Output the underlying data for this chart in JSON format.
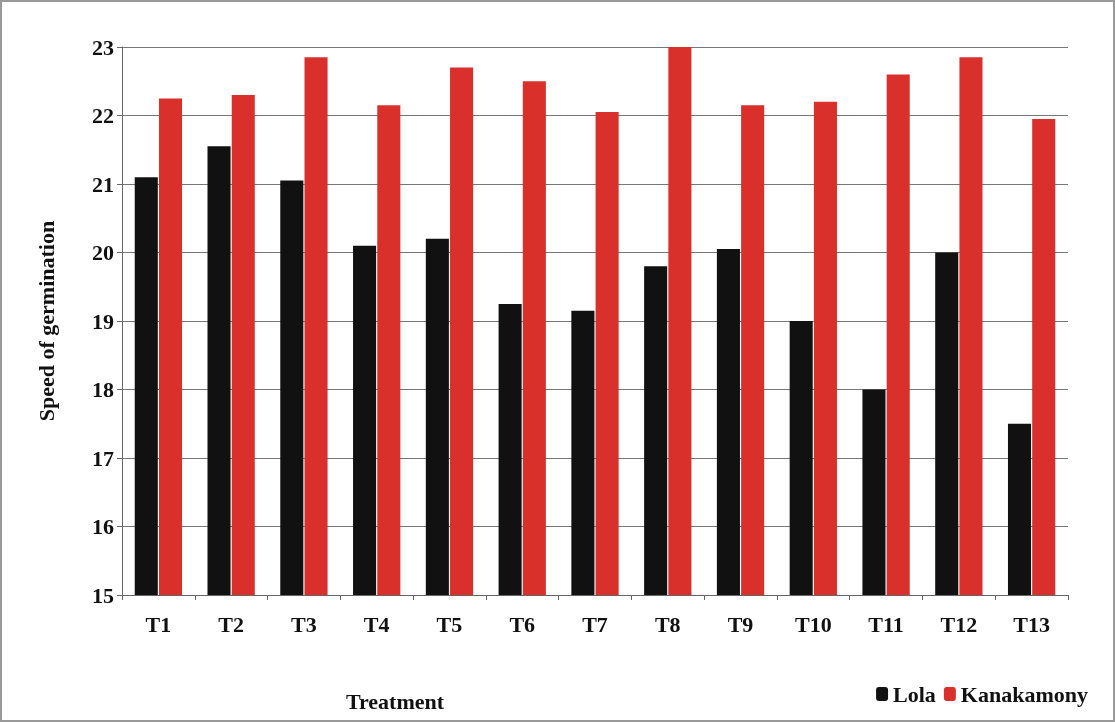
{
  "chart_data": {
    "type": "bar",
    "xlabel": "Treatment",
    "ylabel": "Speed of germination",
    "categories": [
      "T1",
      "T2",
      "T3",
      "T4",
      "T5",
      "T6",
      "T7",
      "T8",
      "T9",
      "T10",
      "T11",
      "T12",
      "T13"
    ],
    "series": [
      {
        "name": "Lola",
        "color": "#111111",
        "values": [
          21.1,
          21.55,
          21.05,
          20.1,
          20.2,
          19.25,
          19.15,
          19.8,
          20.05,
          19.0,
          18.0,
          20.0,
          17.5
        ]
      },
      {
        "name": "Kanakamony",
        "color": "#d9302c",
        "values": [
          22.25,
          22.3,
          22.85,
          22.15,
          22.7,
          22.5,
          22.05,
          23.0,
          22.15,
          22.2,
          22.6,
          22.85,
          21.95
        ]
      }
    ],
    "ylim": [
      15,
      23
    ],
    "yticks": [
      15,
      16,
      17,
      18,
      19,
      20,
      21,
      22,
      23
    ],
    "grid": "y",
    "legend": "bottom right"
  }
}
